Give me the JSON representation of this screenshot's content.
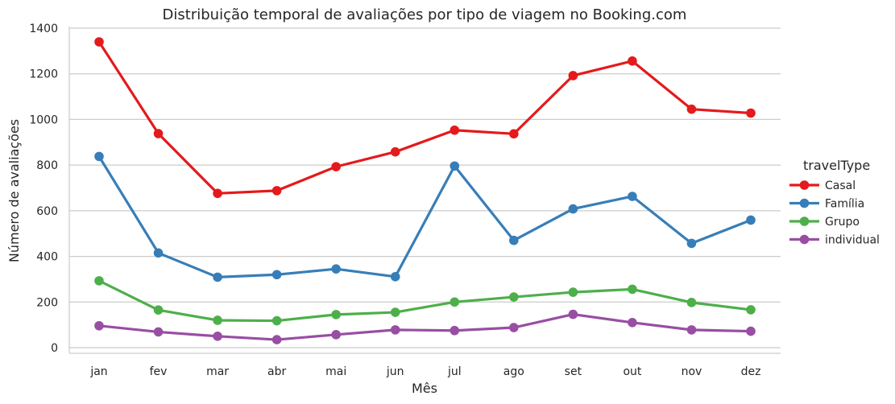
{
  "chart_data": {
    "type": "line",
    "title": "Distribuição temporal de avaliações por tipo de viagem no Booking.com",
    "xlabel": "Mês",
    "ylabel": "Número de avaliações",
    "categories": [
      "jan",
      "fev",
      "mar",
      "abr",
      "mai",
      "jun",
      "jul",
      "ago",
      "set",
      "out",
      "nov",
      "dez"
    ],
    "ylim": [
      0,
      1400
    ],
    "yticks": [
      0,
      200,
      400,
      600,
      800,
      1000,
      1200,
      1400
    ],
    "grid": "horizontal",
    "legend_title": "travelType",
    "legend_position": "right",
    "series": [
      {
        "name": "Casal",
        "color": "#e41a1c",
        "values": [
          1340,
          938,
          676,
          688,
          793,
          858,
          953,
          937,
          1192,
          1256,
          1045,
          1028
        ]
      },
      {
        "name": "Família",
        "color": "#377eb8",
        "values": [
          838,
          415,
          309,
          320,
          345,
          311,
          796,
          470,
          608,
          663,
          457,
          559
        ]
      },
      {
        "name": "Grupo",
        "color": "#4daf4a",
        "values": [
          293,
          165,
          120,
          118,
          145,
          155,
          200,
          222,
          243,
          256,
          198,
          166
        ]
      },
      {
        "name": "individual",
        "color": "#984ea3",
        "values": [
          96,
          69,
          50,
          35,
          57,
          78,
          75,
          88,
          146,
          110,
          78,
          72
        ]
      }
    ]
  }
}
